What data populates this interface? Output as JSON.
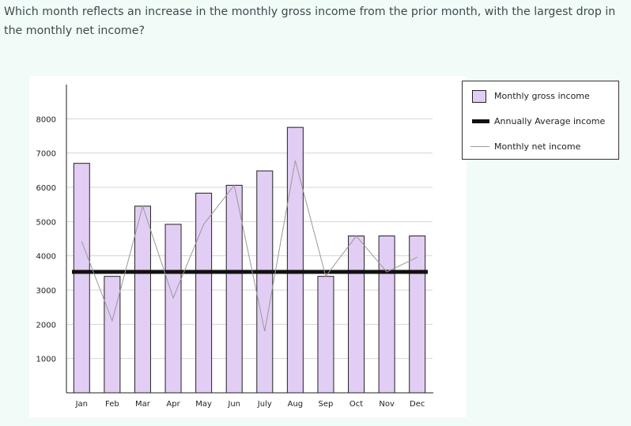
{
  "question": "Which month reflects an increase in the monthly gross income from the prior month, with the largest drop in the monthly net income?",
  "colors": {
    "background": "#f1fbf8",
    "bar_fill": "#e2cdf4",
    "bar_stroke": "#222222",
    "average_line": "#111111",
    "net_line": "#999999"
  },
  "chart_data": {
    "type": "bar",
    "categories": [
      "Jan",
      "Feb",
      "Mar",
      "Apr",
      "May",
      "Jun",
      "July",
      "Aug",
      "Sep",
      "Oct",
      "Nov",
      "Dec"
    ],
    "yticks": [
      "1000",
      "2000",
      "3000",
      "4000",
      "5000",
      "6000",
      "7000",
      "8000"
    ],
    "ylim": [
      0,
      9000
    ],
    "grid": true,
    "legend_position": "right",
    "series": [
      {
        "name": "Monthly gross income",
        "type": "bar",
        "values": [
          6700,
          3400,
          5450,
          4920,
          5830,
          6060,
          6480,
          7750,
          3400,
          4580,
          4580,
          4580
        ]
      },
      {
        "name": "Annually Average income",
        "type": "line",
        "value": 3530
      },
      {
        "name": "Monthly net income",
        "type": "line",
        "values": [
          4420,
          2100,
          5450,
          2770,
          4920,
          6060,
          1800,
          6780,
          3400,
          4580,
          3530,
          3960
        ]
      }
    ]
  }
}
